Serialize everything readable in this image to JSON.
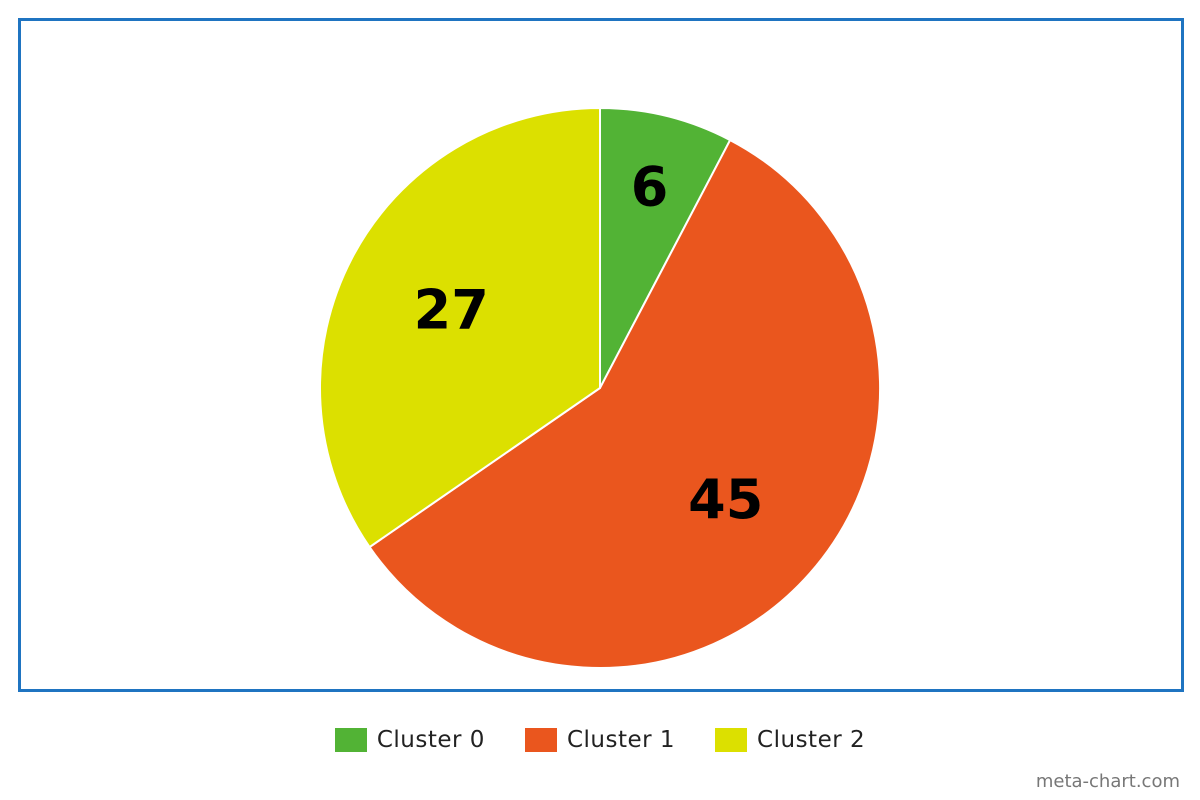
{
  "chart_data": {
    "type": "pie",
    "categories": [
      "Cluster 0",
      "Cluster 1",
      "Cluster 2"
    ],
    "values": [
      6,
      45,
      27
    ],
    "colors": [
      "#52b335",
      "#ea561e",
      "#dce000"
    ],
    "data_labels": [
      "6",
      "45",
      "27"
    ],
    "title": "",
    "legend_position": "bottom"
  },
  "frame_color": "#1f74c1",
  "watermark": "meta-chart.com"
}
